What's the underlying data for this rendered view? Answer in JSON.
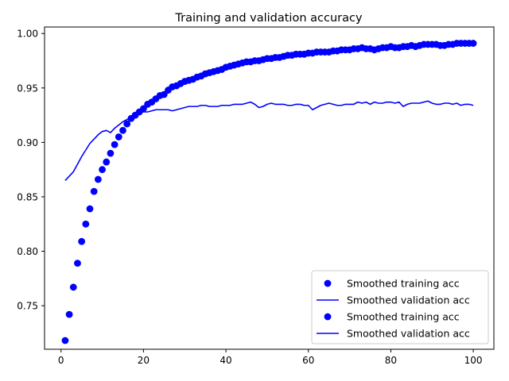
{
  "chart_data": {
    "type": "scatter",
    "title": "Training and validation accuracy",
    "xlabel": "",
    "ylabel": "",
    "xlim": [
      -4,
      105
    ],
    "ylim": [
      0.71,
      1.006
    ],
    "xticks": [
      0,
      20,
      40,
      60,
      80,
      100
    ],
    "yticks": [
      0.75,
      0.8,
      0.85,
      0.9,
      0.95,
      1.0
    ],
    "xtick_labels": [
      "0",
      "20",
      "40",
      "60",
      "80",
      "100"
    ],
    "ytick_labels": [
      "0.75",
      "0.80",
      "0.85",
      "0.90",
      "0.95",
      "1.00"
    ],
    "grid": false,
    "legend": {
      "position": "lower-right",
      "entries": [
        {
          "label": "Smoothed training acc",
          "marker": "dot",
          "color": "#0000ff"
        },
        {
          "label": "Smoothed validation acc",
          "marker": "line",
          "color": "#0000ff"
        },
        {
          "label": "Smoothed training acc",
          "marker": "dot",
          "color": "#0000ff"
        },
        {
          "label": "Smoothed validation acc",
          "marker": "line",
          "color": "#0000ff"
        }
      ]
    },
    "series": [
      {
        "name": "Smoothed training acc",
        "style": "dots",
        "color": "#0000ff",
        "x": [
          1,
          2,
          3,
          4,
          5,
          6,
          7,
          8,
          9,
          10,
          11,
          12,
          13,
          14,
          15,
          16,
          17,
          18,
          19,
          20,
          21,
          22,
          23,
          24,
          25,
          26,
          27,
          28,
          29,
          30,
          31,
          32,
          33,
          34,
          35,
          36,
          37,
          38,
          39,
          40,
          41,
          42,
          43,
          44,
          45,
          46,
          47,
          48,
          49,
          50,
          51,
          52,
          53,
          54,
          55,
          56,
          57,
          58,
          59,
          60,
          61,
          62,
          63,
          64,
          65,
          66,
          67,
          68,
          69,
          70,
          71,
          72,
          73,
          74,
          75,
          76,
          77,
          78,
          79,
          80,
          81,
          82,
          83,
          84,
          85,
          86,
          87,
          88,
          89,
          90,
          91,
          92,
          93,
          94,
          95,
          96,
          97,
          98,
          99,
          100
        ],
        "y": [
          0.718,
          0.742,
          0.767,
          0.789,
          0.809,
          0.825,
          0.839,
          0.855,
          0.866,
          0.875,
          0.882,
          0.89,
          0.898,
          0.905,
          0.911,
          0.917,
          0.922,
          0.925,
          0.928,
          0.931,
          0.935,
          0.937,
          0.94,
          0.943,
          0.944,
          0.948,
          0.951,
          0.952,
          0.954,
          0.956,
          0.957,
          0.958,
          0.96,
          0.961,
          0.963,
          0.964,
          0.965,
          0.966,
          0.967,
          0.969,
          0.97,
          0.971,
          0.972,
          0.973,
          0.974,
          0.974,
          0.975,
          0.975,
          0.976,
          0.977,
          0.977,
          0.978,
          0.978,
          0.979,
          0.98,
          0.98,
          0.981,
          0.981,
          0.981,
          0.982,
          0.982,
          0.983,
          0.983,
          0.983,
          0.983,
          0.984,
          0.984,
          0.985,
          0.985,
          0.985,
          0.986,
          0.986,
          0.987,
          0.986,
          0.986,
          0.985,
          0.986,
          0.987,
          0.987,
          0.988,
          0.987,
          0.987,
          0.988,
          0.988,
          0.989,
          0.988,
          0.989,
          0.99,
          0.99,
          0.99,
          0.99,
          0.989,
          0.989,
          0.99,
          0.99,
          0.991,
          0.991,
          0.991,
          0.991,
          0.991
        ]
      },
      {
        "name": "Smoothed validation acc",
        "style": "line",
        "color": "#0000ff",
        "x": [
          1,
          2,
          3,
          4,
          5,
          6,
          7,
          8,
          9,
          10,
          11,
          12,
          13,
          14,
          15,
          16,
          17,
          18,
          19,
          20,
          21,
          22,
          23,
          24,
          25,
          26,
          27,
          28,
          29,
          30,
          31,
          32,
          33,
          34,
          35,
          36,
          37,
          38,
          39,
          40,
          41,
          42,
          43,
          44,
          45,
          46,
          47,
          48,
          49,
          50,
          51,
          52,
          53,
          54,
          55,
          56,
          57,
          58,
          59,
          60,
          61,
          62,
          63,
          64,
          65,
          66,
          67,
          68,
          69,
          70,
          71,
          72,
          73,
          74,
          75,
          76,
          77,
          78,
          79,
          80,
          81,
          82,
          83,
          84,
          85,
          86,
          87,
          88,
          89,
          90,
          91,
          92,
          93,
          94,
          95,
          96,
          97,
          98,
          99,
          100
        ],
        "y": [
          0.865,
          0.869,
          0.873,
          0.88,
          0.887,
          0.893,
          0.899,
          0.903,
          0.907,
          0.91,
          0.911,
          0.909,
          0.913,
          0.916,
          0.919,
          0.921,
          0.923,
          0.925,
          0.927,
          0.928,
          0.928,
          0.929,
          0.93,
          0.93,
          0.93,
          0.93,
          0.929,
          0.93,
          0.931,
          0.932,
          0.933,
          0.933,
          0.933,
          0.934,
          0.934,
          0.933,
          0.933,
          0.933,
          0.934,
          0.934,
          0.934,
          0.935,
          0.935,
          0.935,
          0.936,
          0.937,
          0.935,
          0.932,
          0.933,
          0.935,
          0.936,
          0.935,
          0.935,
          0.935,
          0.934,
          0.934,
          0.935,
          0.935,
          0.934,
          0.934,
          0.93,
          0.932,
          0.934,
          0.935,
          0.936,
          0.935,
          0.934,
          0.934,
          0.935,
          0.935,
          0.935,
          0.937,
          0.936,
          0.937,
          0.935,
          0.937,
          0.936,
          0.936,
          0.937,
          0.937,
          0.936,
          0.937,
          0.933,
          0.935,
          0.936,
          0.936,
          0.936,
          0.937,
          0.938,
          0.936,
          0.935,
          0.935,
          0.936,
          0.936,
          0.935,
          0.936,
          0.934,
          0.935,
          0.935,
          0.934
        ]
      }
    ]
  }
}
